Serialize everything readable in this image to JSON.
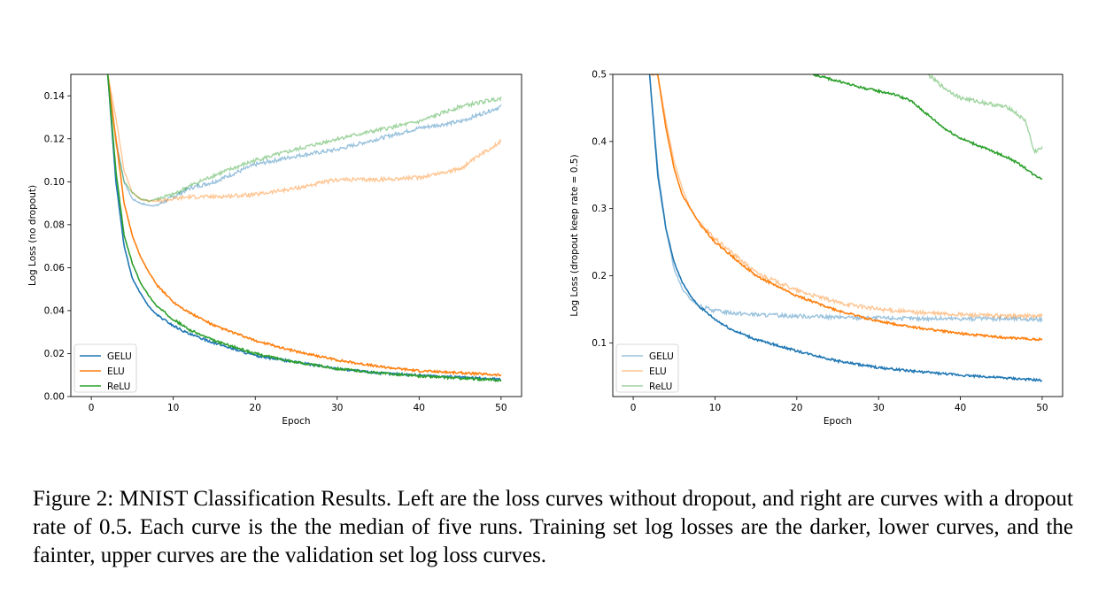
{
  "figure": {
    "caption": "Figure 2: MNIST Classification Results. Left are the loss curves without dropout, and right are curves with a dropout rate of 0.5. Each curve is the the median of five runs. Training set log losses are the darker, lower curves, and the fainter, upper curves are the validation set log loss curves."
  },
  "colors": {
    "GELU": "#1f77b4",
    "ELU": "#ff7f0e",
    "ReLU": "#2ca02c"
  },
  "chart_data": [
    {
      "type": "line",
      "xlabel": "Epoch",
      "ylabel": "Log Loss (no dropout)",
      "xlim": [
        -2.5,
        52.5
      ],
      "ylim": [
        0.0,
        0.15
      ],
      "xticks": [
        "0",
        "10",
        "20",
        "30",
        "40",
        "50"
      ],
      "yticks": [
        "0.00",
        "0.02",
        "0.04",
        "0.06",
        "0.08",
        "0.10",
        "0.12",
        "0.14"
      ],
      "legend_position": "lower-left",
      "legend": [
        {
          "name": "GELU",
          "style": "dark"
        },
        {
          "name": "ELU",
          "style": "dark"
        },
        {
          "name": "ReLU",
          "style": "dark"
        }
      ],
      "grid": false,
      "series": [
        {
          "name": "GELU",
          "kind": "train",
          "x": [
            2,
            3,
            4,
            5,
            6,
            7,
            8,
            10,
            12,
            15,
            20,
            25,
            30,
            35,
            40,
            45,
            50
          ],
          "y": [
            0.15,
            0.1,
            0.07,
            0.055,
            0.048,
            0.042,
            0.038,
            0.033,
            0.029,
            0.025,
            0.019,
            0.016,
            0.013,
            0.011,
            0.01,
            0.009,
            0.008
          ]
        },
        {
          "name": "ELU",
          "kind": "train",
          "x": [
            2,
            3,
            4,
            5,
            6,
            7,
            8,
            10,
            12,
            15,
            20,
            25,
            30,
            35,
            40,
            45,
            50
          ],
          "y": [
            0.15,
            0.12,
            0.09,
            0.075,
            0.065,
            0.058,
            0.052,
            0.044,
            0.039,
            0.033,
            0.026,
            0.021,
            0.017,
            0.014,
            0.012,
            0.011,
            0.01
          ]
        },
        {
          "name": "ReLU",
          "kind": "train",
          "x": [
            2,
            3,
            4,
            5,
            6,
            7,
            8,
            10,
            12,
            15,
            20,
            25,
            30,
            35,
            40,
            45,
            50
          ],
          "y": [
            0.15,
            0.105,
            0.075,
            0.062,
            0.053,
            0.047,
            0.042,
            0.036,
            0.031,
            0.026,
            0.02,
            0.016,
            0.013,
            0.011,
            0.0095,
            0.0085,
            0.0075
          ]
        },
        {
          "name": "GELU",
          "kind": "validation",
          "x": [
            2,
            3,
            4,
            5,
            6,
            7,
            8,
            10,
            12,
            15,
            20,
            25,
            30,
            35,
            40,
            45,
            50
          ],
          "y": [
            0.15,
            0.12,
            0.1,
            0.092,
            0.09,
            0.089,
            0.089,
            0.093,
            0.097,
            0.1,
            0.108,
            0.112,
            0.115,
            0.12,
            0.125,
            0.128,
            0.135
          ]
        },
        {
          "name": "ELU",
          "kind": "validation",
          "x": [
            2,
            3,
            4,
            5,
            6,
            7,
            8,
            10,
            12,
            15,
            20,
            25,
            30,
            35,
            40,
            45,
            50
          ],
          "y": [
            0.15,
            0.13,
            0.105,
            0.095,
            0.092,
            0.091,
            0.091,
            0.092,
            0.093,
            0.093,
            0.094,
            0.097,
            0.101,
            0.101,
            0.102,
            0.106,
            0.119
          ]
        },
        {
          "name": "ReLU",
          "kind": "validation",
          "x": [
            2,
            3,
            4,
            5,
            6,
            7,
            8,
            10,
            12,
            15,
            20,
            25,
            30,
            35,
            40,
            45,
            50
          ],
          "y": [
            0.15,
            0.118,
            0.1,
            0.095,
            0.092,
            0.091,
            0.092,
            0.094,
            0.098,
            0.103,
            0.11,
            0.115,
            0.12,
            0.124,
            0.128,
            0.135,
            0.139
          ]
        }
      ]
    },
    {
      "type": "line",
      "xlabel": "Epoch",
      "ylabel": "Log Loss (dropout keep rate = 0.5)",
      "xlim": [
        -2.5,
        52.5
      ],
      "ylim": [
        0.02,
        0.5
      ],
      "xticks": [
        "0",
        "10",
        "20",
        "30",
        "40",
        "50"
      ],
      "yticks": [
        "0.1",
        "0.2",
        "0.3",
        "0.4",
        "0.5"
      ],
      "legend_position": "lower-left",
      "legend": [
        {
          "name": "GELU",
          "style": "faint"
        },
        {
          "name": "ELU",
          "style": "faint"
        },
        {
          "name": "ReLU",
          "style": "faint"
        }
      ],
      "grid": false,
      "series": [
        {
          "name": "GELU",
          "kind": "train",
          "x": [
            2,
            3,
            4,
            5,
            6,
            7,
            8,
            10,
            12,
            15,
            20,
            25,
            30,
            35,
            40,
            45,
            50
          ],
          "y": [
            0.5,
            0.35,
            0.27,
            0.22,
            0.19,
            0.17,
            0.155,
            0.135,
            0.12,
            0.105,
            0.088,
            0.073,
            0.063,
            0.057,
            0.052,
            0.048,
            0.044
          ]
        },
        {
          "name": "ELU",
          "kind": "train",
          "x": [
            2,
            3,
            4,
            5,
            6,
            7,
            8,
            10,
            12,
            15,
            20,
            25,
            30,
            35,
            40,
            45,
            50
          ],
          "y": [
            0.5,
            0.5,
            0.42,
            0.36,
            0.32,
            0.3,
            0.28,
            0.25,
            0.23,
            0.2,
            0.17,
            0.148,
            0.132,
            0.122,
            0.114,
            0.108,
            0.105
          ]
        },
        {
          "name": "ReLU",
          "kind": "train",
          "x": [
            22,
            25,
            28,
            30,
            32,
            34,
            36,
            38,
            40,
            42,
            44,
            46,
            48,
            49,
            50
          ],
          "y": [
            0.5,
            0.49,
            0.48,
            0.475,
            0.47,
            0.46,
            0.44,
            0.42,
            0.405,
            0.395,
            0.385,
            0.375,
            0.36,
            0.35,
            0.345
          ]
        },
        {
          "name": "GELU",
          "kind": "validation",
          "x": [
            2,
            3,
            4,
            5,
            6,
            7,
            8,
            10,
            12,
            15,
            20,
            25,
            30,
            35,
            40,
            45,
            50
          ],
          "y": [
            0.5,
            0.36,
            0.27,
            0.21,
            0.18,
            0.165,
            0.155,
            0.148,
            0.145,
            0.142,
            0.14,
            0.138,
            0.137,
            0.136,
            0.136,
            0.136,
            0.135
          ]
        },
        {
          "name": "ELU",
          "kind": "validation",
          "x": [
            2,
            3,
            4,
            5,
            6,
            7,
            8,
            10,
            12,
            15,
            20,
            25,
            30,
            35,
            40,
            45,
            50
          ],
          "y": [
            0.5,
            0.5,
            0.43,
            0.37,
            0.33,
            0.3,
            0.28,
            0.255,
            0.235,
            0.205,
            0.178,
            0.16,
            0.15,
            0.145,
            0.142,
            0.14,
            0.14
          ]
        },
        {
          "name": "ReLU",
          "kind": "validation",
          "x": [
            36,
            38,
            40,
            42,
            44,
            46,
            48,
            49,
            50
          ],
          "y": [
            0.5,
            0.48,
            0.465,
            0.46,
            0.455,
            0.45,
            0.43,
            0.385,
            0.39
          ]
        }
      ]
    }
  ]
}
